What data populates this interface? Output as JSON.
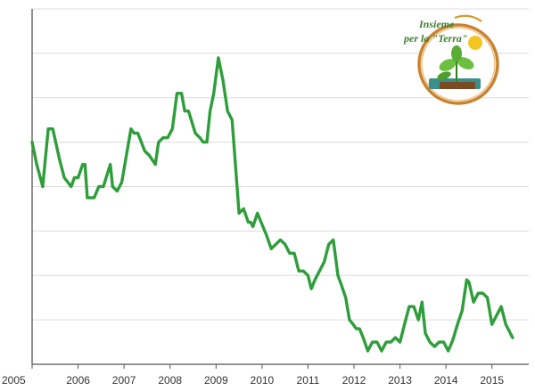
{
  "chart_data": {
    "type": "line",
    "title": "",
    "xlabel": "",
    "ylabel": "",
    "xlim": [
      2005.0,
      2015.8
    ],
    "ylim": [
      0,
      8
    ],
    "grid": true,
    "x_ticks": [
      "2005",
      "2006",
      "2007",
      "2008",
      "2009",
      "2010",
      "2011",
      "2012",
      "2013",
      "2014",
      "2015"
    ],
    "series": [
      {
        "color": "#2e9e3a",
        "x": [
          2005.0,
          2005.1,
          2005.23,
          2005.35,
          2005.45,
          2005.6,
          2005.7,
          2005.85,
          2005.92,
          2006.0,
          2006.1,
          2006.15,
          2006.2,
          2006.35,
          2006.45,
          2006.55,
          2006.7,
          2006.75,
          2006.85,
          2006.95,
          2007.05,
          2007.15,
          2007.22,
          2007.3,
          2007.45,
          2007.55,
          2007.68,
          2007.75,
          2007.85,
          2007.95,
          2008.05,
          2008.15,
          2008.25,
          2008.32,
          2008.4,
          2008.55,
          2008.65,
          2008.72,
          2008.8,
          2008.87,
          2008.95,
          2009.05,
          2009.15,
          2009.25,
          2009.35,
          2009.5,
          2009.6,
          2009.7,
          2009.75,
          2009.8,
          2009.9,
          2009.98,
          2010.1,
          2010.2,
          2010.3,
          2010.4,
          2010.5,
          2010.6,
          2010.7,
          2010.8,
          2010.9,
          2011.0,
          2011.07,
          2011.15,
          2011.25,
          2011.35,
          2011.45,
          2011.55,
          2011.65,
          2011.72,
          2011.82,
          2011.9,
          2011.98,
          2012.05,
          2012.12,
          2012.2,
          2012.3,
          2012.4,
          2012.5,
          2012.6,
          2012.7,
          2012.8,
          2012.9,
          2013.0,
          2013.1,
          2013.2,
          2013.3,
          2013.4,
          2013.48,
          2013.55,
          2013.65,
          2013.75,
          2013.85,
          2013.95,
          2014.05,
          2014.15,
          2014.25,
          2014.35,
          2014.45,
          2014.5,
          2014.6,
          2014.7,
          2014.8,
          2014.9,
          2015.0,
          2015.1,
          2015.2,
          2015.3,
          2015.45
        ],
        "values": [
          5.0,
          4.5,
          4.0,
          5.3,
          5.3,
          4.6,
          4.2,
          4.0,
          4.2,
          4.2,
          4.5,
          4.5,
          3.75,
          3.75,
          4.0,
          4.0,
          4.5,
          4.0,
          3.9,
          4.1,
          4.7,
          5.3,
          5.2,
          5.2,
          4.8,
          4.7,
          4.5,
          5.0,
          5.1,
          5.1,
          5.3,
          6.1,
          6.1,
          5.7,
          5.7,
          5.2,
          5.1,
          5.0,
          5.0,
          5.7,
          6.1,
          6.9,
          6.4,
          5.7,
          5.5,
          3.4,
          3.5,
          3.2,
          3.2,
          3.1,
          3.4,
          3.2,
          2.9,
          2.6,
          2.7,
          2.8,
          2.7,
          2.5,
          2.5,
          2.1,
          2.1,
          2.0,
          1.7,
          1.9,
          2.1,
          2.3,
          2.7,
          2.8,
          2.0,
          1.8,
          1.5,
          1.0,
          0.9,
          0.8,
          0.8,
          0.6,
          0.3,
          0.5,
          0.5,
          0.3,
          0.5,
          0.5,
          0.6,
          0.5,
          0.9,
          1.3,
          1.3,
          1.0,
          1.4,
          0.7,
          0.5,
          0.4,
          0.5,
          0.5,
          0.3,
          0.55,
          0.9,
          1.2,
          1.9,
          1.85,
          1.4,
          1.6,
          1.6,
          1.5,
          0.9,
          1.1,
          1.3,
          0.9,
          0.6
        ]
      }
    ]
  },
  "logo": {
    "line1": "Insieme",
    "line2": "per la \"Terra\""
  }
}
